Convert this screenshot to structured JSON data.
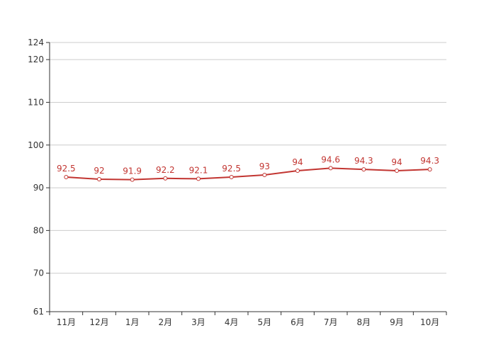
{
  "chart_data": {
    "type": "line",
    "categories": [
      "11月",
      "12月",
      "1月",
      "2月",
      "3月",
      "4月",
      "5月",
      "6月",
      "7月",
      "8月",
      "9月",
      "10月"
    ],
    "series": [
      {
        "values": [
          92.5,
          92,
          91.9,
          92.2,
          92.1,
          92.5,
          93,
          94,
          94.6,
          94.3,
          94,
          94.3
        ],
        "data_labels": [
          "92.5",
          "92",
          "91.9",
          "92.2",
          "92.1",
          "92.5",
          "93",
          "94",
          "94.6",
          "94.3",
          "94",
          "94.3"
        ]
      }
    ],
    "y_ticks": [
      61,
      70,
      80,
      90,
      100,
      110,
      120,
      124
    ],
    "ylim": [
      61,
      124
    ],
    "grid": true,
    "legend": "none",
    "colors": {
      "line": "#c23531",
      "grid": "#cccccc",
      "axis": "#333333"
    }
  }
}
